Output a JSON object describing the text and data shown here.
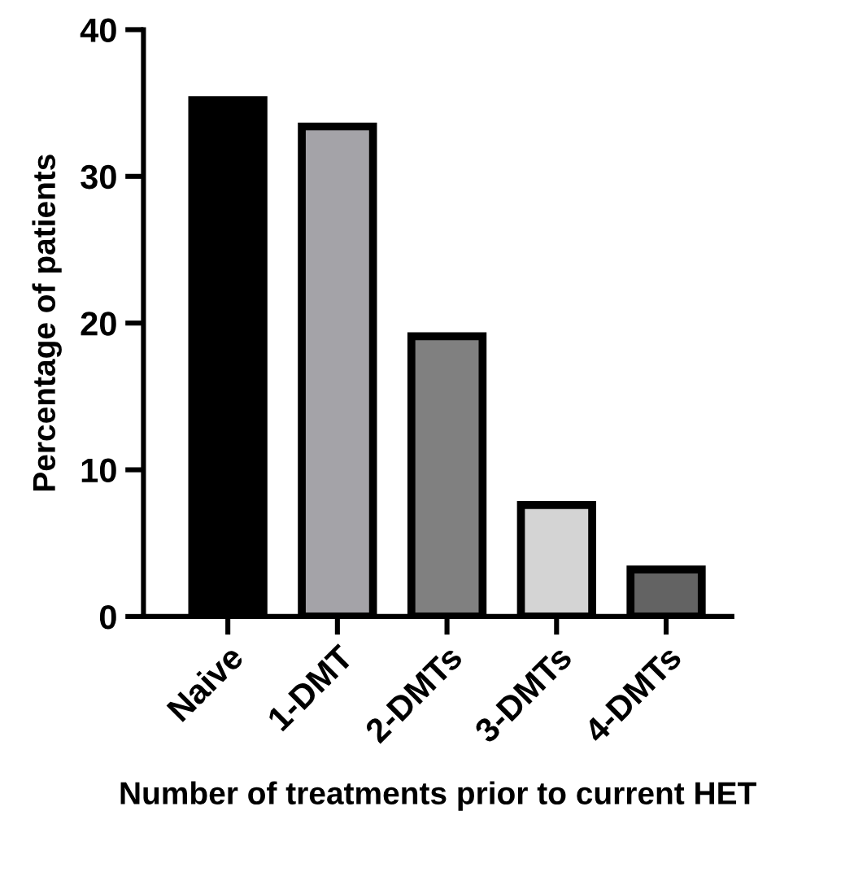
{
  "chart_data": {
    "type": "bar",
    "xlabel": "Number of treatments prior to current HET",
    "ylabel": "Percentage of patients",
    "categories": [
      "Naive",
      "1-DMT",
      "2-DMTs",
      "3-DMTs",
      "4-DMTs"
    ],
    "values": [
      35.2,
      33.4,
      19.1,
      7.6,
      3.2
    ],
    "colors": [
      "#000000",
      "#a4a3a8",
      "#808080",
      "#d4d4d4",
      "#636363"
    ],
    "ylim": [
      0,
      40
    ],
    "yticks": [
      0,
      10,
      20,
      30,
      40
    ],
    "grid": false,
    "legend": false
  }
}
